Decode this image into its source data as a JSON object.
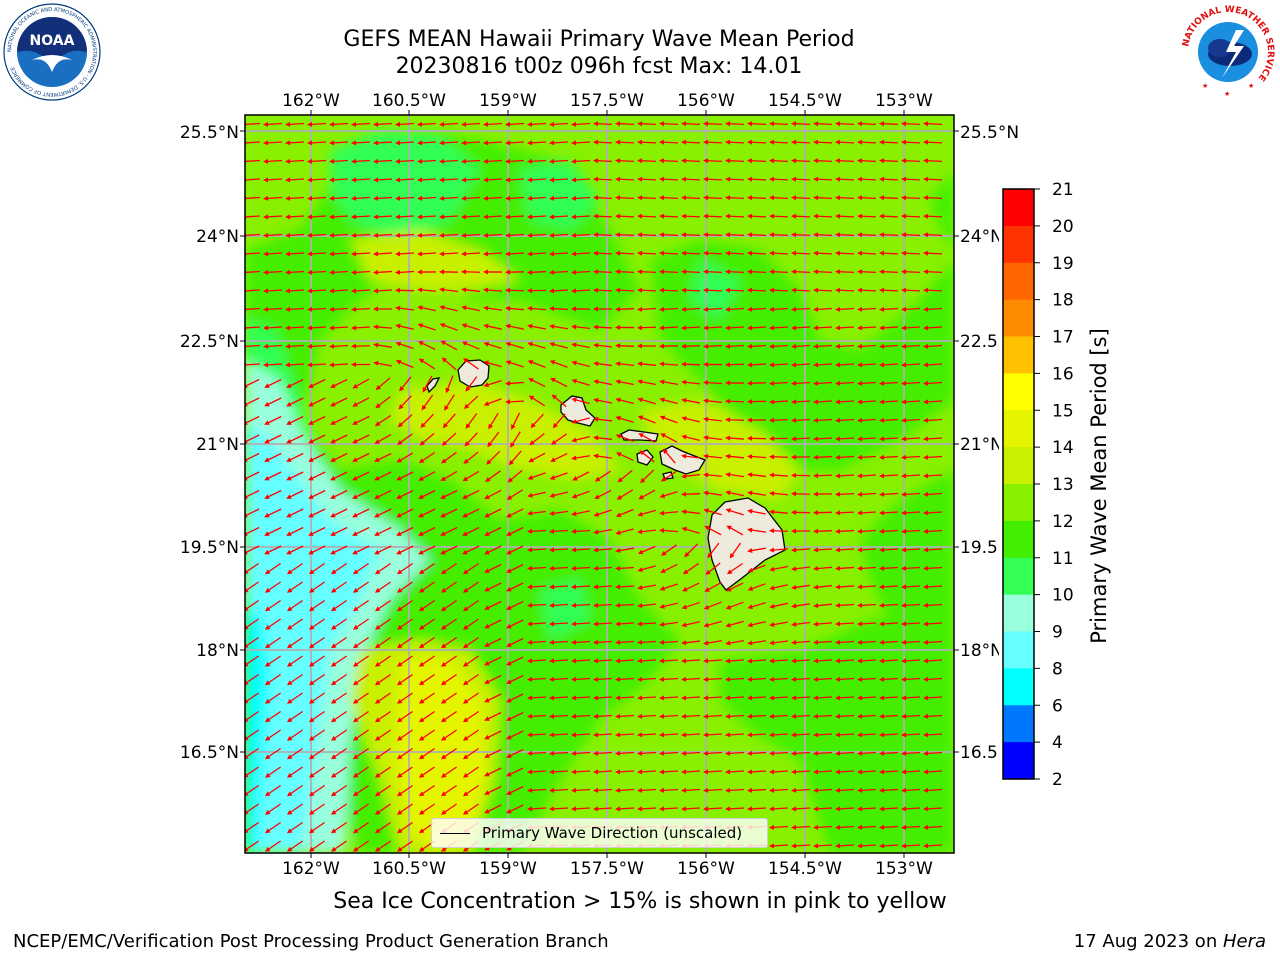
{
  "header": {
    "title_line1": "GEFS MEAN Hawaii Primary Wave Mean Period",
    "title_line2": "20230816 t00z 096h fcst   Max: 14.01"
  },
  "logos": {
    "noaa_text": "NOAA",
    "noaa_ring_text": "NATIONAL OCEANIC AND ATMOSPHERIC ADMINISTRATION · U.S. DEPARTMENT OF COMMERCE",
    "nws_ring_text": "NATIONAL WEATHER SERVICE"
  },
  "map": {
    "lon_labels": [
      "162°W",
      "160.5°W",
      "159°W",
      "157.5°W",
      "156°W",
      "154.5°W",
      "153°W"
    ],
    "lat_labels": [
      "25.5°N",
      "24°N",
      "22.5°N",
      "21°N",
      "19.5°N",
      "18°N",
      "16.5°N"
    ],
    "land_color": "#efebdc",
    "arrow_color": "#ff0000",
    "legend_label": "Primary Wave Direction (unscaled)"
  },
  "colorbar": {
    "title": "Primary Wave Mean Period [s]",
    "ticks": [
      "21",
      "20",
      "19",
      "18",
      "17",
      "16",
      "15",
      "14",
      "13",
      "12",
      "11",
      "10",
      "9",
      "8",
      "6",
      "4",
      "2"
    ],
    "colors": [
      "#ff0000",
      "#ff3300",
      "#ff6600",
      "#ff8c00",
      "#ffc000",
      "#ffff00",
      "#e5f500",
      "#c8f000",
      "#88f000",
      "#44ee00",
      "#33ff55",
      "#99ffdd",
      "#66ffff",
      "#00ffff",
      "#0077ff",
      "#0000ff"
    ]
  },
  "caption": "Sea Ice Concentration > 15% is shown in pink to yellow",
  "footer": {
    "left": "NCEP/EMC/Verification Post Processing Product Generation Branch",
    "right_prefix": "17 Aug 2023 on ",
    "right_host": "Hera"
  }
}
